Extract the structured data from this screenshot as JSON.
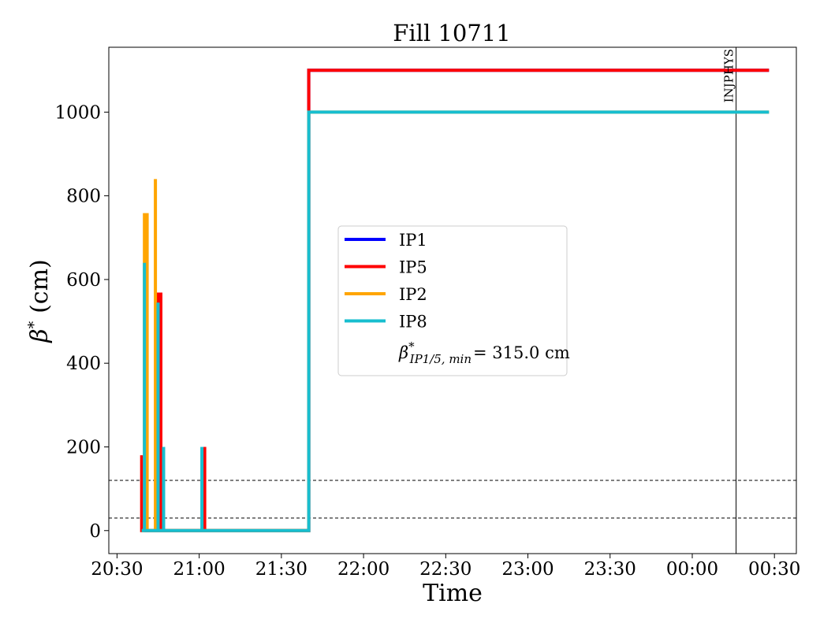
{
  "chart_data": {
    "type": "line",
    "title": "Fill 10711",
    "xlabel": "Time",
    "ylabel_symbol": "β",
    "ylabel_sup": "*",
    "ylabel_unit": "(cm)",
    "xlim": [
      "20:27",
      "00:38"
    ],
    "ylim": [
      -55,
      1155
    ],
    "x_ticks": [
      {
        "t": "20:30",
        "label": "20:30"
      },
      {
        "t": "21:00",
        "label": "21:00"
      },
      {
        "t": "21:30",
        "label": "21:30"
      },
      {
        "t": "22:00",
        "label": "22:00"
      },
      {
        "t": "22:30",
        "label": "22:30"
      },
      {
        "t": "23:00",
        "label": "23:00"
      },
      {
        "t": "23:30",
        "label": "23:30"
      },
      {
        "t": "00:00",
        "label": "00:00"
      },
      {
        "t": "00:30",
        "label": "00:30"
      }
    ],
    "y_ticks": [
      0,
      200,
      400,
      600,
      800,
      1000
    ],
    "grid": false,
    "legend_placement": "center",
    "series": [
      {
        "name": "IP1",
        "color": "#0000ff",
        "points": [
          [
            "20:40",
            0
          ],
          [
            "21:40",
            0
          ],
          [
            "21:40",
            1100
          ],
          [
            "00:28",
            1100
          ]
        ]
      },
      {
        "name": "IP5",
        "color": "#ff0000",
        "points": [
          [
            "20:39",
            145
          ],
          [
            "20:39",
            180
          ],
          [
            "20:39",
            0
          ],
          [
            "20:45",
            0
          ],
          [
            "20:45",
            565
          ],
          [
            "20:46",
            565
          ],
          [
            "20:46",
            0
          ],
          [
            "21:02",
            0
          ],
          [
            "21:02",
            200
          ],
          [
            "21:02",
            0
          ],
          [
            "21:40",
            0
          ],
          [
            "21:40",
            1100
          ],
          [
            "00:28",
            1100
          ]
        ]
      },
      {
        "name": "IP2",
        "color": "#ffa500",
        "points": [
          [
            "20:39",
            0
          ],
          [
            "20:40",
            0
          ],
          [
            "20:40",
            755
          ],
          [
            "20:41",
            755
          ],
          [
            "20:41",
            0
          ],
          [
            "20:44",
            0
          ],
          [
            "20:44",
            840
          ],
          [
            "20:44",
            0
          ],
          [
            "21:40",
            0
          ],
          [
            "21:40",
            1000
          ],
          [
            "00:28",
            1000
          ]
        ]
      },
      {
        "name": "IP8",
        "color": "#17becf",
        "points": [
          [
            "20:39",
            0
          ],
          [
            "20:40",
            0
          ],
          [
            "20:40",
            640
          ],
          [
            "20:40",
            0
          ],
          [
            "20:45",
            0
          ],
          [
            "20:45",
            545
          ],
          [
            "20:45",
            0
          ],
          [
            "20:47",
            0
          ],
          [
            "20:47",
            200
          ],
          [
            "20:47",
            0
          ],
          [
            "21:01",
            0
          ],
          [
            "21:01",
            200
          ],
          [
            "21:01",
            0
          ],
          [
            "21:40",
            0
          ],
          [
            "21:40",
            1000
          ],
          [
            "00:28",
            1000
          ]
        ]
      }
    ],
    "legend_extra_symbol": "β",
    "legend_extra_sup": "*",
    "legend_extra_sub": "IP1/5, min",
    "legend_extra_value": "= 315.0 cm",
    "hlines": [
      120,
      30
    ],
    "vline": {
      "t": "00:16",
      "label": "INJPHYS"
    }
  }
}
